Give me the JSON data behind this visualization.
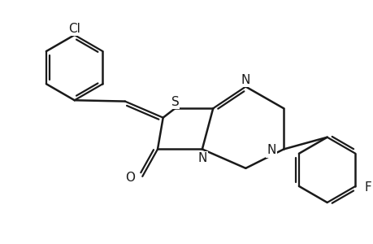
{
  "bg": "#ffffff",
  "lc": "#1a1a1a",
  "lw": 1.8,
  "lw2": 1.6,
  "fs": 11,
  "figsize": [
    4.6,
    3.0
  ],
  "dpi": 100,
  "S": [
    0.0,
    0.55
  ],
  "C8a": [
    0.7,
    0.55
  ],
  "N4": [
    0.5,
    -0.2
  ],
  "C6": [
    -0.32,
    -0.2
  ],
  "C7": [
    -0.22,
    0.38
  ],
  "ExoCH": [
    -0.92,
    0.68
  ],
  "O": [
    -0.6,
    -0.7
  ],
  "N2": [
    1.3,
    0.95
  ],
  "Ctop": [
    2.0,
    0.55
  ],
  "N3": [
    2.0,
    -0.2
  ],
  "Cbot": [
    1.3,
    -0.55
  ],
  "flcx": 2.8,
  "flcy": -0.58,
  "flr": 0.6,
  "flstart": 90,
  "clcx": -1.85,
  "clcy": 1.3,
  "clr": 0.6,
  "clstart": 30,
  "xlim": [
    -3.2,
    3.6
  ],
  "ylim": [
    -1.7,
    2.3
  ]
}
